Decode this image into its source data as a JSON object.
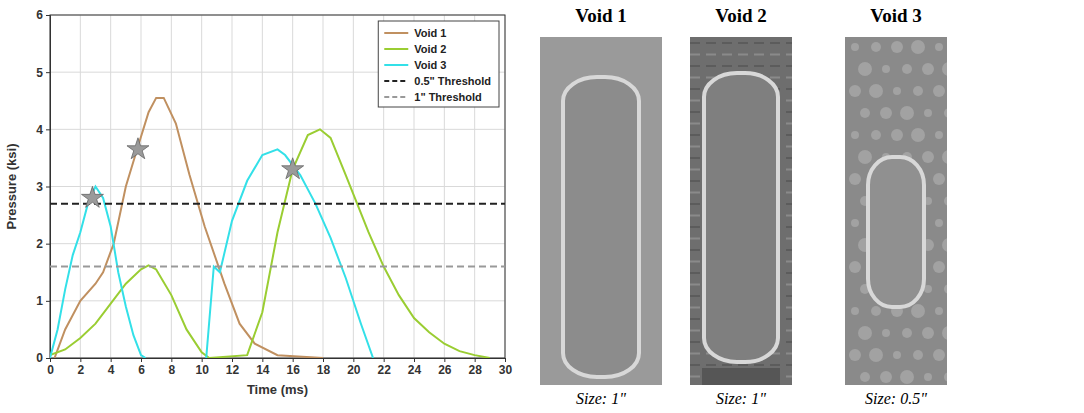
{
  "chart_data": {
    "type": "line",
    "xlabel": "Time (ms)",
    "ylabel": "Pressure (ksi)",
    "xlim": [
      0,
      30
    ],
    "xticks": [
      0,
      2,
      4,
      6,
      8,
      10,
      12,
      14,
      16,
      18,
      20,
      22,
      24,
      26,
      28,
      30
    ],
    "ylim": [
      0,
      6
    ],
    "yticks": [
      0,
      1,
      2,
      3,
      4,
      5,
      6
    ],
    "grid": true,
    "legend": "upper right",
    "series": [
      {
        "name": "Void 1",
        "color": "#c09060",
        "line_style": "solid",
        "x": [
          0.3,
          1,
          2,
          3,
          3.5,
          4.2,
          5,
          5.8,
          6.5,
          7,
          7.5,
          8.3,
          9.2,
          10.2,
          11.5,
          12.5,
          13.5,
          15,
          18
        ],
        "values": [
          0,
          0.5,
          1,
          1.3,
          1.5,
          2,
          3,
          3.7,
          4.3,
          4.55,
          4.55,
          4.1,
          3.2,
          2.3,
          1.3,
          0.6,
          0.25,
          0.05,
          0
        ]
      },
      {
        "name": "Void 2",
        "color": "#9acd32",
        "line_style": "solid",
        "x": [
          0,
          1,
          2,
          3,
          4,
          5,
          6,
          6.5,
          7,
          8,
          9,
          10,
          10.5,
          13,
          14,
          15,
          16,
          17,
          17.8,
          18.5,
          19.5,
          21,
          22,
          23,
          24,
          25,
          26,
          27,
          28,
          29
        ],
        "values": [
          0.05,
          0.15,
          0.35,
          0.6,
          0.95,
          1.3,
          1.55,
          1.62,
          1.55,
          1.1,
          0.5,
          0.1,
          0,
          0.05,
          0.8,
          2.2,
          3.3,
          3.9,
          4.0,
          3.85,
          3.2,
          2.2,
          1.6,
          1.1,
          0.7,
          0.45,
          0.25,
          0.12,
          0.05,
          0
        ]
      },
      {
        "name": "Void 3",
        "color": "#33e0e8",
        "line_style": "solid",
        "x": [
          0,
          0.5,
          1,
          1.5,
          2,
          2.5,
          3,
          3.5,
          4,
          4.5,
          5,
          5.5,
          6,
          6.3,
          8,
          10.3,
          10.8,
          11.2,
          12,
          13,
          14,
          15,
          15.5,
          16.5,
          17.5,
          18.5,
          19.5,
          20.5,
          21.3
        ],
        "values": [
          0,
          0.5,
          1.2,
          1.8,
          2.2,
          2.7,
          3.0,
          2.8,
          2.3,
          1.5,
          0.9,
          0.4,
          0.05,
          0,
          null,
          0,
          1.6,
          1.5,
          2.4,
          3.1,
          3.55,
          3.65,
          3.55,
          3.2,
          2.7,
          2.1,
          1.4,
          0.6,
          0
        ]
      },
      {
        "name": "0.5\" Threshold",
        "color": "#222222",
        "line_style": "dashed",
        "x": [
          0,
          30
        ],
        "values": [
          2.7,
          2.7
        ]
      },
      {
        "name": "1\" Threshold",
        "color": "#999999",
        "line_style": "dashed",
        "x": [
          0,
          30
        ],
        "values": [
          1.6,
          1.6
        ]
      },
      {
        "type": "scatter",
        "marker": "star",
        "color": "#9a9a9a",
        "x": [
          2.8,
          5.8,
          16
        ],
        "values": [
          2.8,
          3.65,
          3.3
        ]
      }
    ]
  },
  "images": [
    {
      "title": "Void 1",
      "caption": "Size: 1\""
    },
    {
      "title": "Void 2",
      "caption": "Size: 1\""
    },
    {
      "title": "Void 3",
      "caption": "Size: 0.5\""
    }
  ]
}
